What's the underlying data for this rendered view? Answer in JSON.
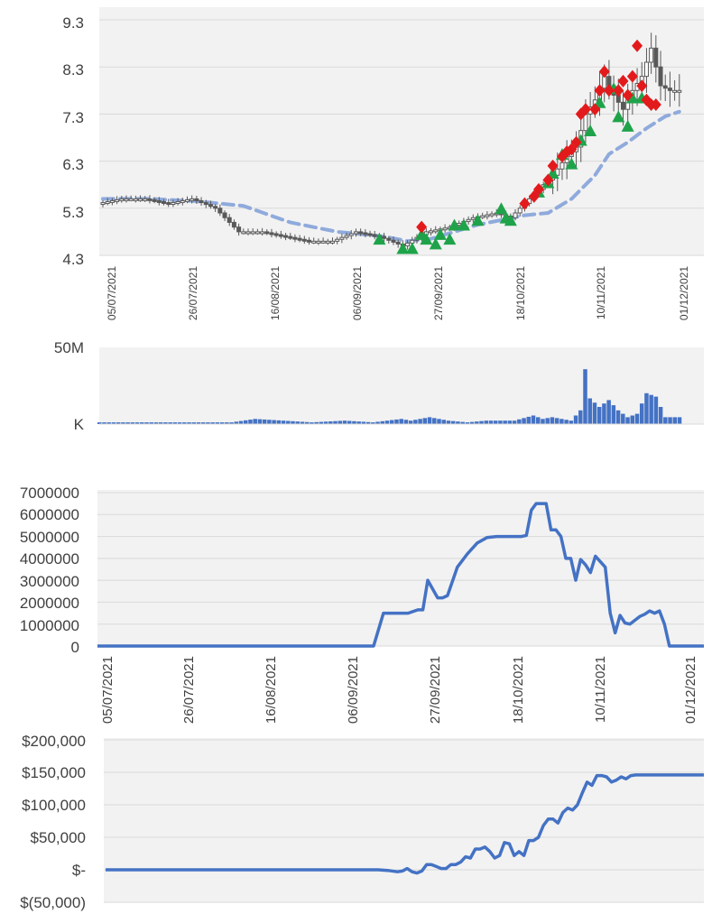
{
  "chart_data": [
    {
      "id": "price",
      "type": "candlestick",
      "title": "",
      "xlabel": "",
      "ylabel": "",
      "ylim": [
        4.3,
        9.3
      ],
      "yticks": [
        "9.3",
        "8.3",
        "7.3",
        "6.3",
        "5.3",
        "4.3"
      ],
      "xticks": [
        "05/07/2021",
        "26/07/2021",
        "16/08/2021",
        "06/09/2021",
        "27/09/2021",
        "18/10/2021",
        "10/11/2021",
        "01/12/2021"
      ],
      "grid": true,
      "series": [
        {
          "name": "close",
          "x": [
            0,
            5,
            10,
            15,
            20,
            25,
            30,
            35,
            40,
            45,
            50,
            55,
            60,
            65,
            70,
            75,
            80,
            85,
            88,
            91,
            94,
            97,
            100,
            102,
            104,
            106,
            108,
            110,
            112,
            114,
            116,
            118,
            120,
            122
          ],
          "values": [
            5.4,
            5.5,
            5.5,
            5.4,
            5.5,
            5.3,
            4.8,
            4.8,
            4.7,
            4.6,
            4.6,
            4.8,
            4.7,
            4.5,
            4.8,
            4.9,
            5.1,
            5.2,
            5.1,
            5.4,
            5.7,
            6.0,
            6.4,
            6.6,
            7.3,
            7.6,
            8.1,
            7.7,
            7.4,
            7.8,
            8.1,
            8.7,
            7.9,
            7.8
          ]
        },
        {
          "name": "moving-average",
          "x": [
            0,
            10,
            20,
            30,
            40,
            50,
            60,
            65,
            70,
            80,
            90,
            95,
            100,
            105,
            108,
            112,
            116,
            120,
            123
          ],
          "values": [
            5.5,
            5.5,
            5.45,
            5.35,
            5.0,
            4.8,
            4.7,
            4.6,
            4.65,
            4.95,
            5.15,
            5.2,
            5.5,
            6.0,
            6.45,
            6.7,
            7.0,
            7.25,
            7.35
          ]
        },
        {
          "name": "buy-signals",
          "x": [
            59,
            64,
            66,
            68,
            69,
            71,
            72,
            74,
            75,
            77,
            80,
            85,
            86,
            87,
            93,
            95,
            96,
            98,
            100,
            102,
            104,
            106,
            109,
            110,
            112,
            113,
            115
          ],
          "values": [
            4.7,
            4.5,
            4.5,
            4.8,
            4.7,
            4.6,
            4.8,
            4.7,
            5.0,
            5.0,
            5.1,
            5.35,
            5.15,
            5.1,
            5.7,
            5.9,
            6.1,
            6.5,
            6.3,
            6.8,
            7.0,
            7.6,
            7.9,
            7.3,
            7.1,
            7.7,
            7.7
          ]
        },
        {
          "name": "sell-signals",
          "x": [
            68,
            90,
            92,
            93,
            95,
            96,
            98,
            99,
            100,
            101,
            102,
            103,
            105,
            106,
            107,
            108,
            110,
            111,
            112,
            113,
            114,
            115,
            116,
            117,
            118
          ],
          "values": [
            4.9,
            5.4,
            5.55,
            5.7,
            5.9,
            6.2,
            6.4,
            6.5,
            6.55,
            6.7,
            7.3,
            7.4,
            7.4,
            7.8,
            8.2,
            7.8,
            7.8,
            8.0,
            7.7,
            8.1,
            8.75,
            7.9,
            7.6,
            7.5,
            7.5
          ]
        }
      ]
    },
    {
      "id": "volume",
      "type": "bar",
      "yticks": [
        "50M",
        "K"
      ],
      "ylim": [
        0,
        50
      ],
      "series": [
        {
          "name": "volume",
          "x": [
            0,
            10,
            20,
            28,
            33,
            45,
            52,
            58,
            64,
            66,
            70,
            74,
            78,
            82,
            88,
            92,
            94,
            96,
            98,
            100,
            102,
            103,
            104,
            106,
            108,
            110,
            112,
            114,
            116,
            118,
            120
          ],
          "values": [
            1,
            1,
            1,
            1,
            3,
            1,
            2,
            1,
            3,
            2,
            4,
            2,
            1,
            2,
            2,
            5,
            3,
            4,
            3,
            2,
            8,
            32,
            15,
            10,
            14,
            8,
            4,
            6,
            18,
            16,
            4
          ]
        }
      ]
    },
    {
      "id": "position",
      "type": "line",
      "yticks": [
        "7000000",
        "6000000",
        "5000000",
        "4000000",
        "3000000",
        "2000000",
        "1000000",
        "0"
      ],
      "xticks": [
        "05/07/2021",
        "26/07/2021",
        "16/08/2021",
        "06/09/2021",
        "27/09/2021",
        "18/10/2021",
        "10/11/2021",
        "01/12/2021"
      ],
      "ylim": [
        0,
        7000000
      ],
      "series": [
        {
          "name": "position",
          "x": [
            0,
            56,
            58,
            63,
            65,
            66,
            67,
            69,
            70,
            71,
            73,
            75,
            77,
            79,
            81,
            86,
            87,
            88,
            89,
            90,
            91,
            92,
            93,
            94,
            95,
            96,
            97,
            98,
            99,
            100,
            101,
            103,
            104,
            105,
            106,
            107,
            108,
            110,
            111,
            112,
            113,
            114,
            115,
            116,
            117,
            118,
            119,
            120,
            121,
            122,
            123
          ],
          "values": [
            0,
            0,
            1500000,
            1500000,
            1650000,
            1650000,
            3000000,
            2200000,
            2200000,
            2300000,
            3600000,
            4200000,
            4700000,
            4950000,
            5000000,
            5000000,
            5050000,
            6200000,
            6500000,
            6500000,
            6500000,
            5300000,
            5300000,
            5000000,
            4000000,
            4000000,
            3000000,
            3950000,
            3700000,
            3350000,
            4100000,
            3600000,
            1500000,
            600000,
            1400000,
            1050000,
            1000000,
            1350000,
            1450000,
            1600000,
            1500000,
            1600000,
            1000000,
            0,
            0,
            0,
            0,
            0,
            0,
            0,
            0
          ]
        }
      ]
    },
    {
      "id": "pnl",
      "type": "line",
      "yticks": [
        "$200,000",
        "$150,000",
        "$100,000",
        "$50,000",
        "$-",
        "$(50,000)"
      ],
      "ylim": [
        -50000,
        200000
      ],
      "series": [
        {
          "name": "profit",
          "x": [
            0,
            56,
            58,
            60,
            61,
            62,
            63,
            64,
            65,
            66,
            67,
            68,
            69,
            70,
            71,
            72,
            73,
            74,
            75,
            76,
            77,
            78,
            79,
            80,
            81,
            82,
            83,
            84,
            85,
            86,
            87,
            88,
            89,
            90,
            91,
            92,
            93,
            94,
            95,
            96,
            97,
            98,
            99,
            100,
            101,
            102,
            103,
            104,
            105,
            106,
            107,
            108,
            109,
            110,
            111,
            112,
            113,
            114,
            115,
            116,
            117,
            118,
            119,
            120,
            121,
            122,
            123
          ],
          "values": [
            0,
            0,
            -1000,
            -3000,
            -2000,
            2000,
            -3000,
            -5000,
            -2000,
            8000,
            8000,
            5000,
            2000,
            2000,
            8000,
            8000,
            12000,
            20000,
            18000,
            32000,
            32000,
            35000,
            28000,
            18000,
            22000,
            42000,
            40000,
            22000,
            28000,
            22000,
            45000,
            45000,
            50000,
            68000,
            78000,
            78000,
            72000,
            88000,
            95000,
            92000,
            100000,
            118000,
            135000,
            130000,
            145000,
            145000,
            143000,
            135000,
            138000,
            143000,
            140000,
            145000,
            146000,
            146000,
            146000,
            146000,
            146000,
            146000,
            146000,
            146000,
            146000,
            146000,
            146000,
            146000,
            146000,
            146000,
            146000
          ]
        }
      ]
    }
  ],
  "colors": {
    "candle": "#595959",
    "moving_average": "#8faadc",
    "buy_marker": "#1fa34a",
    "sell_marker": "#e31a1c",
    "volume_bar": "#4472c4",
    "line": "#4472c4",
    "plot_bg": "#f2f2f2",
    "grid": "#d9d9d9"
  }
}
